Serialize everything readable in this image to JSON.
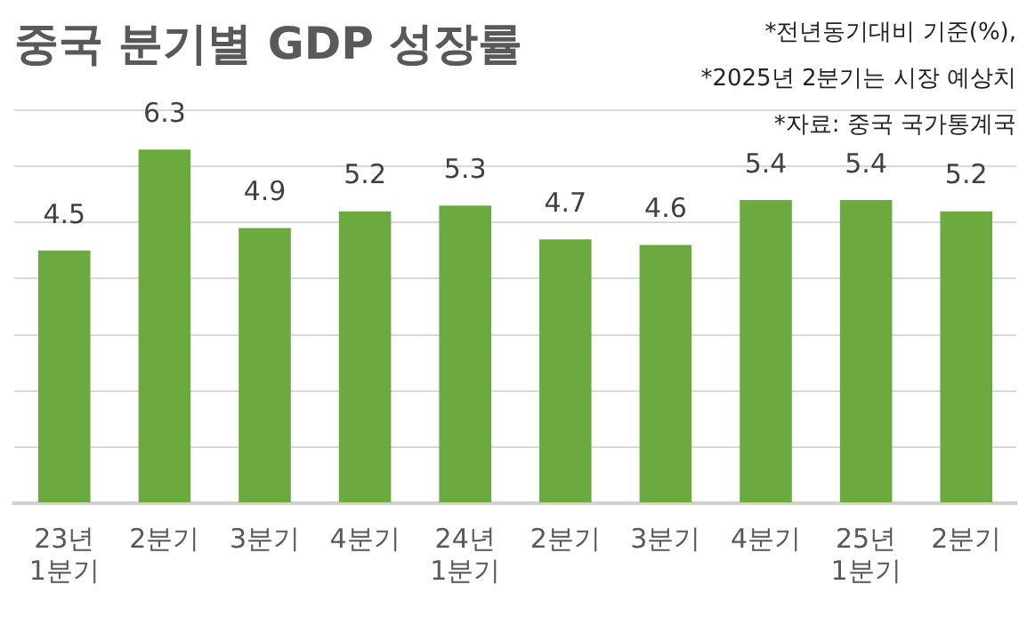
{
  "chart_data": {
    "type": "bar",
    "title": "중국 분기별 GDP 성장률",
    "annotations": [
      "*전년동기대비 기준(%),",
      "*2025년 2분기는 시장 예상치",
      "*자료: 중국 국가통계국"
    ],
    "categories": [
      "23년\n1분기",
      "2분기",
      "3분기",
      "4분기",
      "24년\n1분기",
      "2분기",
      "3분기",
      "4분기",
      "25년\n1분기",
      "2분기"
    ],
    "values": [
      4.5,
      6.3,
      4.9,
      5.2,
      5.3,
      4.7,
      4.6,
      5.4,
      5.4,
      5.2
    ],
    "color": "#6aaa3e",
    "ylim": [
      0,
      7
    ],
    "yticks": [
      {
        "value": 0,
        "label": null
      },
      {
        "value": 1,
        "label": null
      },
      {
        "value": 2,
        "label": null
      },
      {
        "value": 3,
        "label": null
      },
      {
        "value": 4,
        "label": null
      },
      {
        "value": 5,
        "label": null
      },
      {
        "value": 6,
        "label": null
      },
      {
        "value": 7,
        "label": null
      }
    ],
    "tick_labels": "x",
    "grid": "y",
    "data_labels": true,
    "legend": false
  }
}
